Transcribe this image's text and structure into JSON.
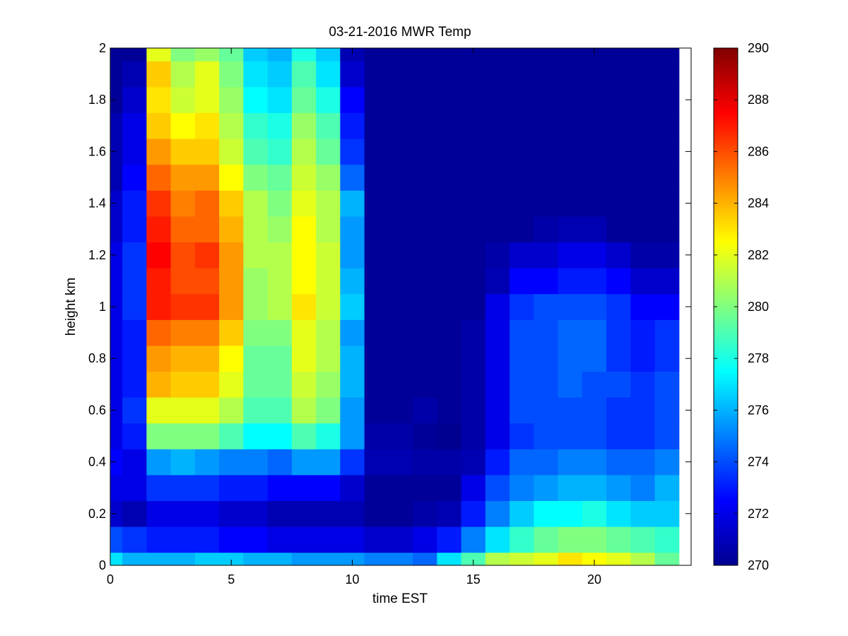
{
  "chart_data": {
    "type": "heatmap",
    "title": "03-21-2016 MWR Temp",
    "xlabel": "time EST",
    "ylabel": "height km",
    "xlim": [
      0,
      24
    ],
    "ylim": [
      0,
      2
    ],
    "x_ticks": [
      0,
      5,
      10,
      15,
      20
    ],
    "y_ticks": [
      0,
      0.2,
      0.4,
      0.6,
      0.8,
      1,
      1.2,
      1.4,
      1.6,
      1.8,
      2
    ],
    "colorbar": {
      "range": [
        270,
        290
      ],
      "ticks": [
        270,
        272,
        274,
        276,
        278,
        280,
        282,
        284,
        286,
        288,
        290
      ],
      "colormap": "jet"
    },
    "grid": false,
    "x_centers": [
      0,
      1,
      2,
      3,
      4,
      5,
      6,
      7,
      8,
      9,
      10,
      11,
      12,
      13,
      14,
      15,
      16,
      17,
      18,
      19,
      20,
      21,
      22,
      23
    ],
    "y_centers": [
      0,
      0.1,
      0.2,
      0.3,
      0.4,
      0.5,
      0.6,
      0.7,
      0.8,
      0.9,
      1.0,
      1.1,
      1.2,
      1.3,
      1.4,
      1.5,
      1.6,
      1.7,
      1.8,
      1.9,
      2.0
    ],
    "values_units": "K",
    "values_note": "rows ordered from height 0 km to 2 km; columns from hour 0 to hour 23",
    "values": [
      [
        277,
        276,
        276,
        276,
        276.5,
        276.5,
        276,
        276,
        275.5,
        275.5,
        275.5,
        275,
        275,
        274.5,
        277,
        279,
        281,
        281.5,
        282,
        283,
        282.5,
        282,
        281,
        279.5
      ],
      [
        274,
        273.5,
        273,
        273,
        273,
        272.5,
        272.5,
        272,
        272,
        272,
        272,
        271.5,
        271.5,
        272,
        273,
        275,
        277,
        278.5,
        279.5,
        280,
        280,
        279.5,
        279,
        278.5
      ],
      [
        271.5,
        271,
        272,
        272,
        272,
        271.5,
        271.5,
        271,
        271,
        271,
        271,
        270.5,
        270.5,
        270.8,
        271,
        273,
        275,
        276.5,
        277.5,
        277.5,
        278,
        277,
        276.5,
        276.5
      ],
      [
        272,
        272,
        273.5,
        273.5,
        273.5,
        273,
        273,
        272.5,
        272.5,
        272.5,
        271.5,
        270.5,
        270.5,
        270.5,
        270.5,
        272,
        274,
        275,
        275.5,
        276,
        276,
        275.5,
        275,
        276
      ],
      [
        272.5,
        272,
        275.5,
        276,
        275.5,
        275,
        275,
        274.5,
        275.5,
        275.5,
        273.5,
        271,
        271,
        270.8,
        270.8,
        271,
        273,
        274.5,
        274.5,
        275,
        275,
        274.5,
        274.5,
        275
      ],
      [
        272,
        273,
        280,
        280,
        280,
        279,
        277.5,
        277.5,
        279,
        278,
        275.5,
        270.8,
        270.8,
        270.5,
        270.3,
        270.8,
        272,
        273.5,
        274,
        274,
        274,
        273.5,
        273.5,
        274
      ],
      [
        272,
        273.5,
        282,
        282,
        282,
        281,
        279,
        279,
        281,
        280,
        275.5,
        270.5,
        270.5,
        270.8,
        270.5,
        270.8,
        272,
        274,
        274,
        274,
        274,
        273.5,
        273.5,
        274
      ],
      [
        272,
        273,
        284,
        283.5,
        283.5,
        282,
        279.5,
        279.5,
        281.5,
        280.5,
        276,
        270.5,
        270.5,
        270.5,
        270.5,
        270.8,
        272,
        274,
        274,
        274.5,
        274,
        274,
        273.5,
        274
      ],
      [
        272,
        273,
        284.5,
        284,
        284,
        282.5,
        279.5,
        279.5,
        282,
        281,
        276,
        270.5,
        270.5,
        270.5,
        270.5,
        270.8,
        272,
        274,
        274,
        274.5,
        274.5,
        273.5,
        273,
        273.5
      ],
      [
        272,
        273,
        285.5,
        285,
        285,
        283.5,
        280,
        280,
        282,
        281,
        275.5,
        270.5,
        270.5,
        270.5,
        270.5,
        270.8,
        272,
        274,
        274,
        274.5,
        274.5,
        273.5,
        273,
        273.5
      ],
      [
        272,
        273.5,
        287,
        286.5,
        286.5,
        284.5,
        280.5,
        281,
        283,
        281.5,
        276.5,
        270.5,
        270.5,
        270.5,
        270.5,
        270.5,
        272,
        273.5,
        274,
        274,
        274,
        273.5,
        272.5,
        272.5
      ],
      [
        272,
        273.5,
        287,
        286,
        286,
        284.5,
        280.5,
        281,
        282.5,
        281.5,
        276,
        270.5,
        270.5,
        270.5,
        270.5,
        270.5,
        271,
        272.5,
        272.5,
        273,
        273,
        272.5,
        271.5,
        271.5
      ],
      [
        272,
        273.5,
        287.5,
        286,
        286.5,
        284.5,
        281,
        281,
        282.5,
        281.5,
        275.5,
        270.5,
        270.5,
        270.5,
        270.5,
        270.5,
        270.8,
        271.5,
        271.5,
        272,
        272,
        271.5,
        270.8,
        270.8
      ],
      [
        271.5,
        273,
        287,
        285.5,
        285.5,
        284,
        281,
        280.5,
        282.5,
        281,
        275.5,
        270.5,
        270.5,
        270.5,
        270.5,
        270.5,
        270.5,
        270.5,
        270.8,
        271,
        271,
        270.5,
        270.5,
        270.5
      ],
      [
        271.5,
        273,
        286.5,
        285,
        285.5,
        283.5,
        281,
        280,
        282,
        281,
        276,
        270.5,
        270.5,
        270.5,
        270.5,
        270.5,
        270.5,
        270.5,
        270.5,
        270.5,
        270.5,
        270.5,
        270.5,
        270.5
      ],
      [
        271,
        272.5,
        285.5,
        284.5,
        284.5,
        282.5,
        280,
        279.5,
        281.5,
        280.5,
        274.5,
        270.5,
        270.5,
        270.5,
        270.5,
        270.5,
        270.5,
        270.5,
        270.5,
        270.5,
        270.5,
        270.5,
        270.5,
        270.5
      ],
      [
        271,
        272,
        284.5,
        283.5,
        283.5,
        281.5,
        279,
        278.5,
        281,
        279.5,
        273.5,
        270.5,
        270.5,
        270.5,
        270.5,
        270.5,
        270.5,
        270.5,
        270.5,
        270.5,
        270.5,
        270.5,
        270.5,
        270.5
      ],
      [
        271,
        272,
        283.5,
        282.5,
        283,
        281,
        278.5,
        278,
        280.5,
        279,
        273,
        270.5,
        270.5,
        270.5,
        270.5,
        270.5,
        270.5,
        270.5,
        270.5,
        270.5,
        270.5,
        270.5,
        270.5,
        270.5
      ],
      [
        270.5,
        271.5,
        283,
        281.5,
        282,
        280.5,
        277.5,
        277,
        279.5,
        278,
        272.5,
        270.5,
        270.5,
        270.5,
        270.5,
        270.5,
        270.5,
        270.5,
        270.5,
        270.5,
        270.5,
        270.5,
        270.5,
        270.5
      ],
      [
        270.5,
        271,
        283.5,
        281,
        282,
        280,
        277,
        276.5,
        279,
        277,
        271.5,
        270.5,
        270.5,
        270.5,
        270.5,
        270.5,
        270.5,
        270.5,
        270.5,
        270.5,
        270.5,
        270.5,
        270.5,
        270.5
      ],
      [
        270.5,
        270.5,
        282,
        280,
        280.5,
        279.5,
        276.5,
        276,
        278,
        276.5,
        271,
        270.5,
        270.5,
        270.5,
        270.5,
        270.5,
        270.5,
        270.5,
        270.5,
        270.5,
        270.5,
        270.5,
        270.5,
        270.5
      ]
    ]
  }
}
